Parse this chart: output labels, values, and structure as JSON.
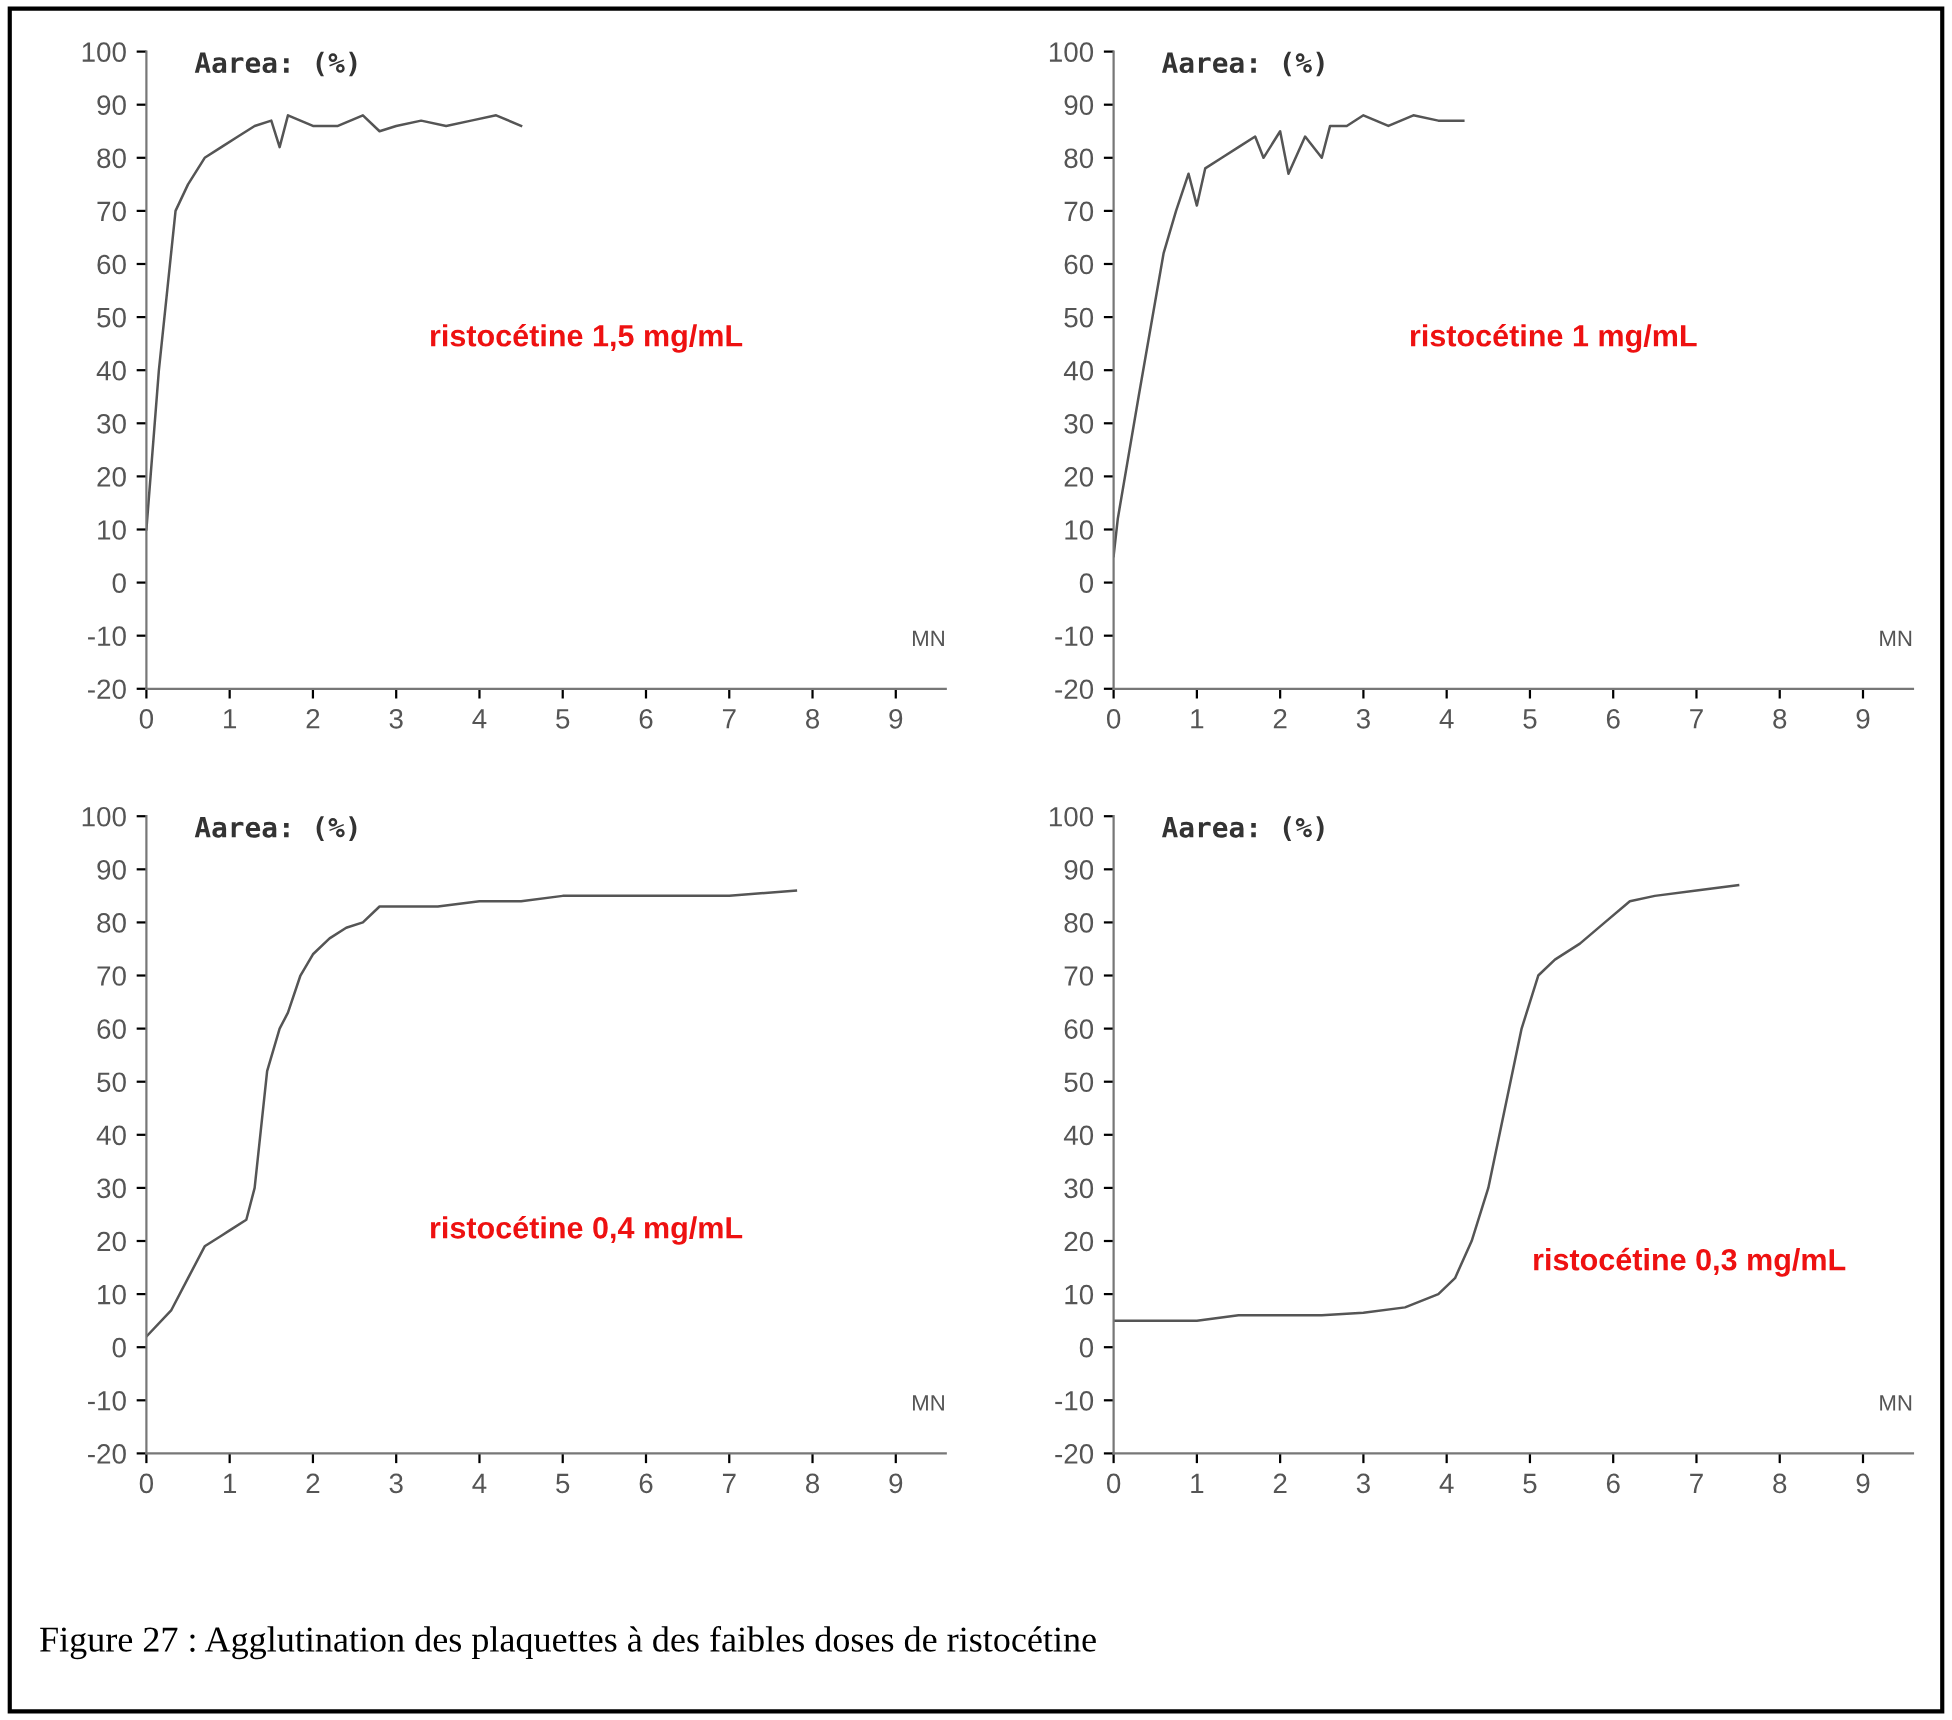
{
  "chart_data": [
    {
      "type": "line",
      "ylabel": "Aarea: (%)",
      "xlabel": "MN",
      "xlim": [
        0,
        9.6
      ],
      "ylim": [
        -20,
        100
      ],
      "xticks": [
        0,
        1,
        2,
        3,
        4,
        5,
        6,
        7,
        8,
        9
      ],
      "yticks": [
        -20,
        -10,
        0,
        10,
        20,
        30,
        40,
        50,
        60,
        70,
        80,
        90,
        100
      ],
      "grid": false,
      "legend": false,
      "series": [
        {
          "color": "#555555",
          "x": [
            0,
            0.05,
            0.15,
            0.25,
            0.35,
            0.5,
            0.7,
            0.9,
            1.1,
            1.3,
            1.5,
            1.6,
            1.7,
            2.0,
            2.3,
            2.6,
            2.8,
            3.0,
            3.3,
            3.6,
            3.9,
            4.2,
            4.5
          ],
          "values": [
            10,
            20,
            40,
            55,
            70,
            75,
            80,
            82,
            84,
            86,
            87,
            82,
            88,
            86,
            86,
            88,
            85,
            86,
            87,
            86,
            87,
            88,
            86
          ]
        }
      ],
      "annotations": [
        "ristocétine 1,5 mg/mL"
      ]
    },
    {
      "type": "line",
      "ylabel": "Aarea: (%)",
      "xlabel": "MN",
      "xlim": [
        0,
        9.6
      ],
      "ylim": [
        -20,
        100
      ],
      "xticks": [
        0,
        1,
        2,
        3,
        4,
        5,
        6,
        7,
        8,
        9
      ],
      "yticks": [
        -20,
        -10,
        0,
        10,
        20,
        30,
        40,
        50,
        60,
        70,
        80,
        90,
        100
      ],
      "grid": false,
      "legend": false,
      "series": [
        {
          "color": "#555555",
          "x": [
            0,
            0.05,
            0.3,
            0.6,
            0.75,
            0.9,
            1.0,
            1.1,
            1.3,
            1.5,
            1.7,
            1.8,
            2.0,
            2.1,
            2.3,
            2.5,
            2.6,
            2.8,
            3.0,
            3.3,
            3.6,
            3.9,
            4.2
          ],
          "values": [
            5,
            12,
            35,
            62,
            70,
            77,
            71,
            78,
            80,
            82,
            84,
            80,
            85,
            77,
            84,
            80,
            86,
            86,
            88,
            86,
            88,
            87,
            87
          ]
        }
      ],
      "annotations": [
        "ristocétine 1 mg/mL"
      ]
    },
    {
      "type": "line",
      "ylabel": "Aarea: (%)",
      "xlabel": "MN",
      "xlim": [
        0,
        9.6
      ],
      "ylim": [
        -20,
        100
      ],
      "xticks": [
        0,
        1,
        2,
        3,
        4,
        5,
        6,
        7,
        8,
        9
      ],
      "yticks": [
        -20,
        -10,
        0,
        10,
        20,
        30,
        40,
        50,
        60,
        70,
        80,
        90,
        100
      ],
      "grid": false,
      "legend": false,
      "series": [
        {
          "color": "#555555",
          "x": [
            0,
            0.3,
            0.5,
            0.7,
            0.9,
            1.0,
            1.2,
            1.3,
            1.45,
            1.6,
            1.7,
            1.85,
            2.0,
            2.2,
            2.4,
            2.6,
            2.8,
            3.0,
            3.5,
            4.0,
            4.5,
            5.0,
            5.5,
            6.0,
            6.5,
            7.0,
            7.8
          ],
          "values": [
            2,
            7,
            13,
            19,
            21,
            22,
            24,
            30,
            52,
            60,
            63,
            70,
            74,
            77,
            79,
            80,
            83,
            83,
            83,
            84,
            84,
            85,
            85,
            85,
            85,
            85,
            86
          ]
        }
      ],
      "annotations": [
        "ristocétine 0,4 mg/mL"
      ]
    },
    {
      "type": "line",
      "ylabel": "Aarea: (%)",
      "xlabel": "MN",
      "xlim": [
        0,
        9.6
      ],
      "ylim": [
        -20,
        100
      ],
      "xticks": [
        0,
        1,
        2,
        3,
        4,
        5,
        6,
        7,
        8,
        9
      ],
      "yticks": [
        -20,
        -10,
        0,
        10,
        20,
        30,
        40,
        50,
        60,
        70,
        80,
        90,
        100
      ],
      "grid": false,
      "legend": false,
      "series": [
        {
          "color": "#555555",
          "x": [
            0,
            1.0,
            1.5,
            2.0,
            2.5,
            3.0,
            3.5,
            3.9,
            4.1,
            4.3,
            4.5,
            4.7,
            4.9,
            5.0,
            5.1,
            5.3,
            5.6,
            5.9,
            6.2,
            6.5,
            7.0,
            7.5
          ],
          "values": [
            5,
            5,
            6,
            6,
            6,
            6.5,
            7.5,
            10,
            13,
            20,
            30,
            45,
            60,
            65,
            70,
            73,
            76,
            80,
            84,
            85,
            86,
            87
          ]
        }
      ],
      "annotations": [
        "ristocétine 0,3 mg/mL",
        "Figure 27 : Agglutination des plaquettes à des faibles doses de ristocétine"
      ]
    }
  ]
}
